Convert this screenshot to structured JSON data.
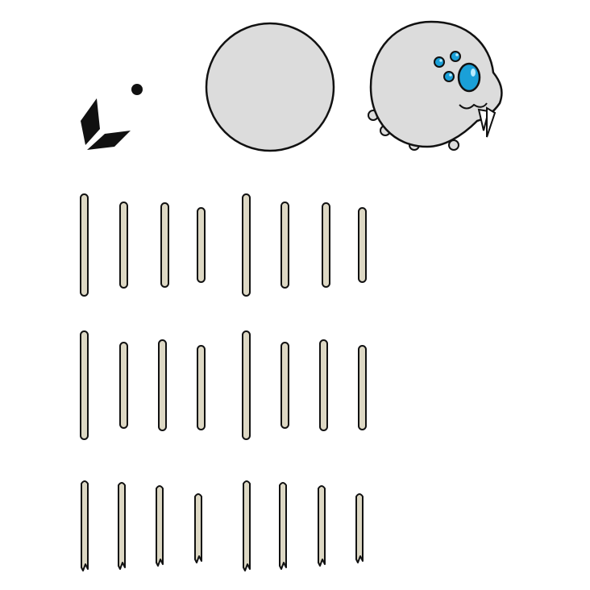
{
  "sheet": {
    "background": "#ffffff",
    "outline_color": "#111111",
    "body_fill": "#dcdcdc",
    "leg_fill": "#ddd8c4",
    "eye_fill": "#1aa0d8",
    "eye_highlight": "#b8ecff",
    "fang_fill": "#ffffff",
    "eyes_icon": "spider-eyes-part-icon",
    "body_icon": "spider-body-part-icon",
    "head_icon": "spider-head-part-icon",
    "leg_icon": "spider-leg-segment-icon",
    "rows": [
      {
        "name": "leg-row-upper",
        "style": "rounded",
        "count": 8
      },
      {
        "name": "leg-row-middle",
        "style": "rounded",
        "count": 8
      },
      {
        "name": "leg-row-lower",
        "style": "tipped",
        "count": 8
      }
    ]
  }
}
